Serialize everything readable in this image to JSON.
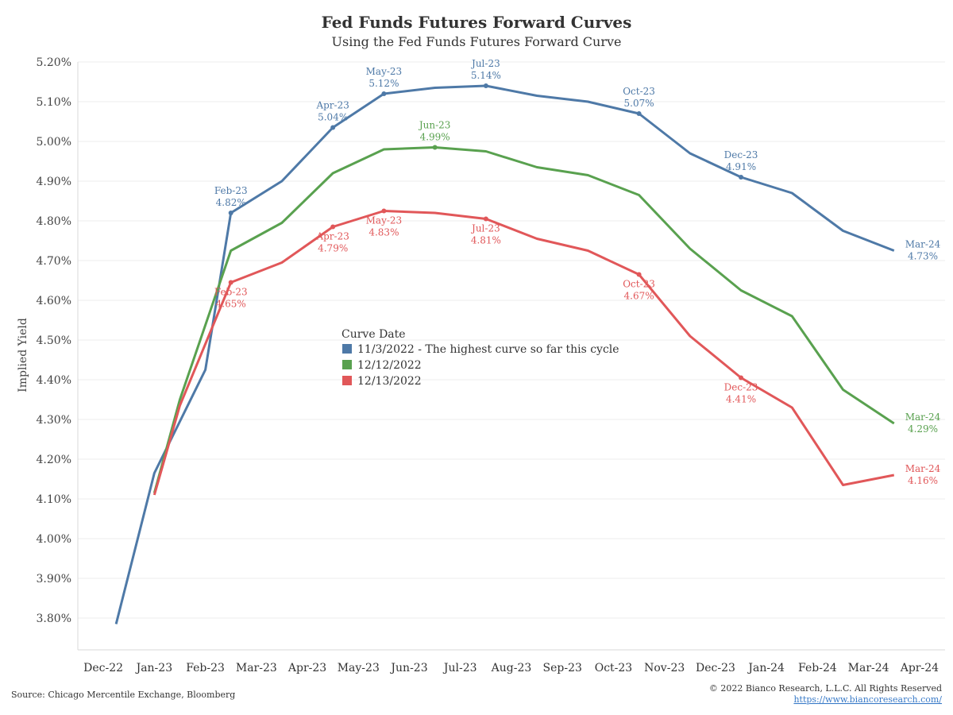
{
  "chart_data": {
    "type": "line",
    "title": "Fed Funds Futures Forward Curves",
    "subtitle": "Using the Fed Funds Futures Forward Curve",
    "ylabel": "Implied Yield",
    "xlabel": "",
    "ylim": [
      3.75,
      5.25
    ],
    "y_ticks": [
      3.8,
      3.9,
      4.0,
      4.1,
      4.2,
      4.3,
      4.4,
      4.5,
      4.6,
      4.7,
      4.8,
      4.9,
      5.0,
      5.1,
      5.2
    ],
    "y_tick_labels": [
      "3.80%",
      "3.90%",
      "4.00%",
      "4.10%",
      "4.20%",
      "4.30%",
      "4.40%",
      "4.50%",
      "4.60%",
      "4.70%",
      "4.80%",
      "4.90%",
      "5.00%",
      "5.10%",
      "5.20%"
    ],
    "categories": [
      "Dec-22",
      "Jan-23",
      "Feb-23",
      "Mar-23",
      "Apr-23",
      "May-23",
      "Jun-23",
      "Jul-23",
      "Aug-23",
      "Sep-23",
      "Oct-23",
      "Nov-23",
      "Dec-23",
      "Jan-24",
      "Feb-24",
      "Mar-24",
      "Apr-24"
    ],
    "grid": "horizontal",
    "legend_title": "Curve Date",
    "legend_position": "center",
    "series": [
      {
        "name": "11/3/2022 - The highest curve so far this cycle",
        "color": "#4e79a7",
        "values": [
          3.785,
          4.165,
          4.425,
          4.82,
          4.9,
          5.035,
          5.12,
          5.135,
          5.14,
          5.115,
          5.1,
          5.07,
          4.97,
          4.91,
          4.87,
          4.775,
          4.725
        ],
        "x_offset": [
          0.25,
          0,
          0,
          -0.5,
          -0.5,
          -0.5,
          -0.5,
          -0.5,
          -0.5,
          -0.5,
          -0.5,
          -0.5,
          -0.5,
          -0.5,
          -0.5,
          -0.5,
          -0.5
        ],
        "labels": [
          {
            "i": 3,
            "month": "Feb-23",
            "value": "4.82%"
          },
          {
            "i": 5,
            "month": "Apr-23",
            "value": "5.04%"
          },
          {
            "i": 6,
            "month": "May-23",
            "value": "5.12%"
          },
          {
            "i": 8,
            "month": "Jul-23",
            "value": "5.14%"
          },
          {
            "i": 11,
            "month": "Oct-23",
            "value": "5.07%"
          },
          {
            "i": 13,
            "month": "Dec-23",
            "value": "4.91%"
          },
          {
            "i": 16,
            "month": "Mar-24",
            "value": "4.73%"
          }
        ]
      },
      {
        "name": "12/12/2022",
        "color": "#59a14f",
        "values": [
          null,
          4.115,
          4.35,
          4.725,
          4.795,
          4.92,
          4.98,
          4.985,
          4.975,
          4.935,
          4.915,
          4.865,
          4.73,
          4.625,
          4.56,
          4.375,
          4.29
        ],
        "labels": [
          {
            "i": 7,
            "month": "Jun-23",
            "value": "4.99%"
          },
          {
            "i": 16,
            "month": "Mar-24",
            "value": "4.29%"
          }
        ]
      },
      {
        "name": "12/13/2022",
        "color": "#e15759",
        "values": [
          null,
          4.11,
          4.335,
          4.645,
          4.695,
          4.785,
          4.825,
          4.82,
          4.805,
          4.755,
          4.725,
          4.665,
          4.51,
          4.405,
          4.33,
          4.135,
          4.16
        ],
        "labels": [
          {
            "i": 3,
            "month": "Feb-23",
            "value": "4.65%"
          },
          {
            "i": 5,
            "month": "Apr-23",
            "value": "4.79%"
          },
          {
            "i": 6,
            "month": "May-23",
            "value": "4.83%"
          },
          {
            "i": 8,
            "month": "Jul-23",
            "value": "4.81%"
          },
          {
            "i": 11,
            "month": "Oct-23",
            "value": "4.67%"
          },
          {
            "i": 13,
            "month": "Dec-23",
            "value": "4.41%"
          },
          {
            "i": 16,
            "month": "Mar-24",
            "value": "4.16%"
          }
        ]
      }
    ]
  },
  "footer": {
    "source": "Source: Chicago Mercentile Exchange, Bloomberg",
    "copyright": "© 2022 Bianco Research, L.L.C. All Rights Reserved",
    "link": "https://www.biancoresearch.com/"
  }
}
